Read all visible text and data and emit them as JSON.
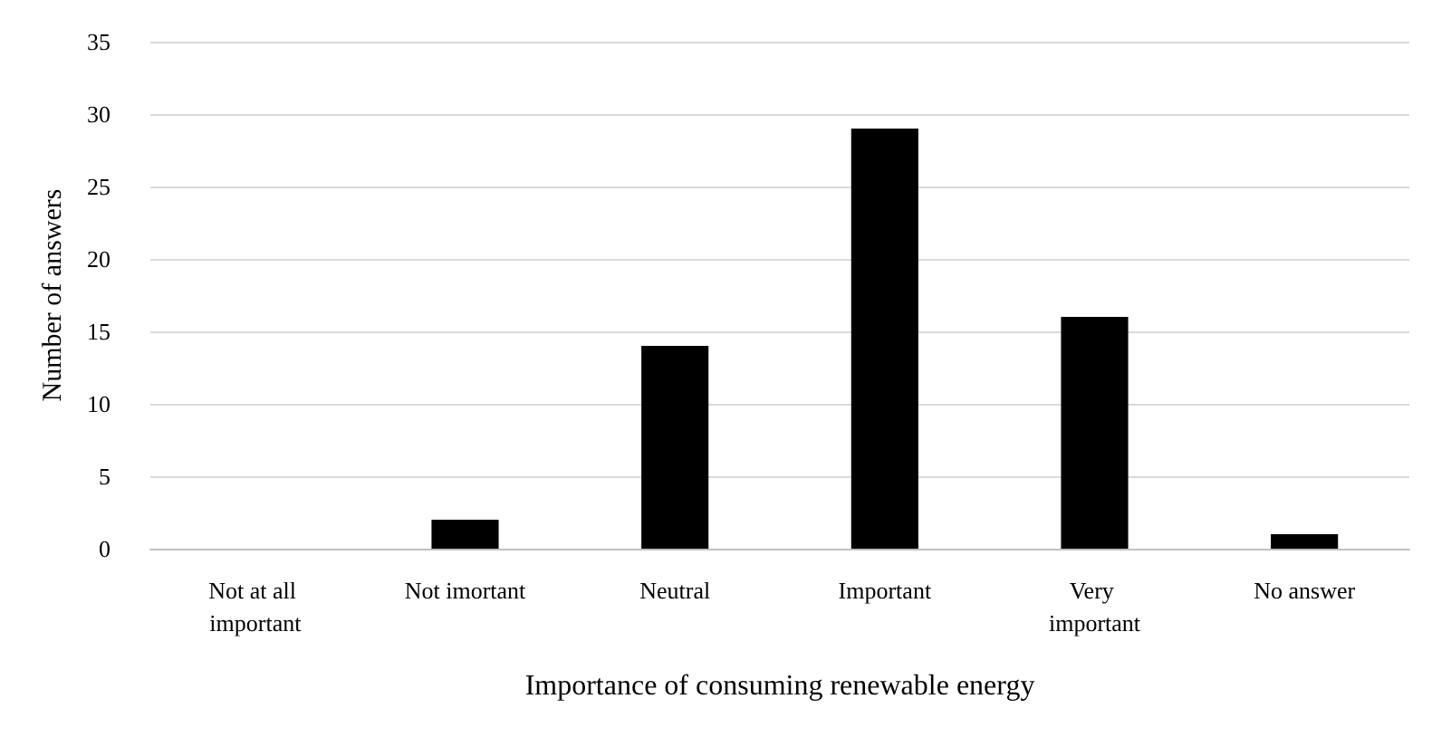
{
  "chart_data": {
    "type": "bar",
    "xlabel": "Importance of consuming renewable energy",
    "ylabel": "Number of answers",
    "categories": [
      "Not at all important",
      "Not imortant",
      "Neutral",
      "Important",
      "Very important",
      "No answer"
    ],
    "values": [
      0,
      2,
      14,
      29,
      16,
      1
    ],
    "color": "#000000",
    "ylim": [
      0,
      35
    ],
    "yticks": [
      0,
      5,
      10,
      15,
      20,
      25,
      30,
      35
    ],
    "grid": "y"
  }
}
